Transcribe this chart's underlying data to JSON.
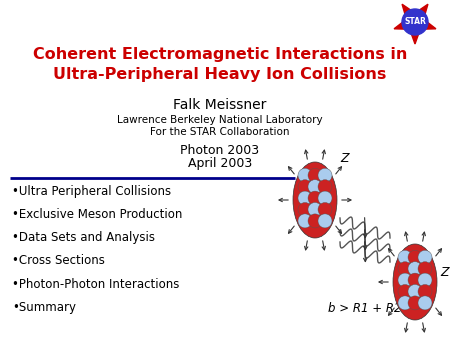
{
  "title_line1": "Coherent Electromagnetic Interactions in",
  "title_line2": "Ultra-Peripheral Heavy Ion Collisions",
  "title_color": "#cc0000",
  "title_fontsize": 11.5,
  "author": "Falk Meissner",
  "author_fontsize": 10,
  "affil1": "Lawrence Berkeley National Laboratory",
  "affil2": "For the STAR Collaboration",
  "affil_fontsize": 7.5,
  "event1": "Photon 2003",
  "event2": "April 2003",
  "event_fontsize": 9,
  "bullet_items": [
    "Ultra Peripheral Collisions",
    "Exclusive Meson Production",
    "Data Sets and Analysis",
    "Cross Sections",
    "Photon-Photon Interactions",
    "Summary"
  ],
  "bullet_fontsize": 8.5,
  "bullet_color": "#000000",
  "bg_color": "#ffffff",
  "line_color": "#00008B",
  "star_outer_color": "#cc0000",
  "star_inner_color": "#3333cc",
  "label_b": "b > R1 + R2",
  "ion_outer_color": "#cc2222",
  "ion_inner_color": "#aaccee"
}
